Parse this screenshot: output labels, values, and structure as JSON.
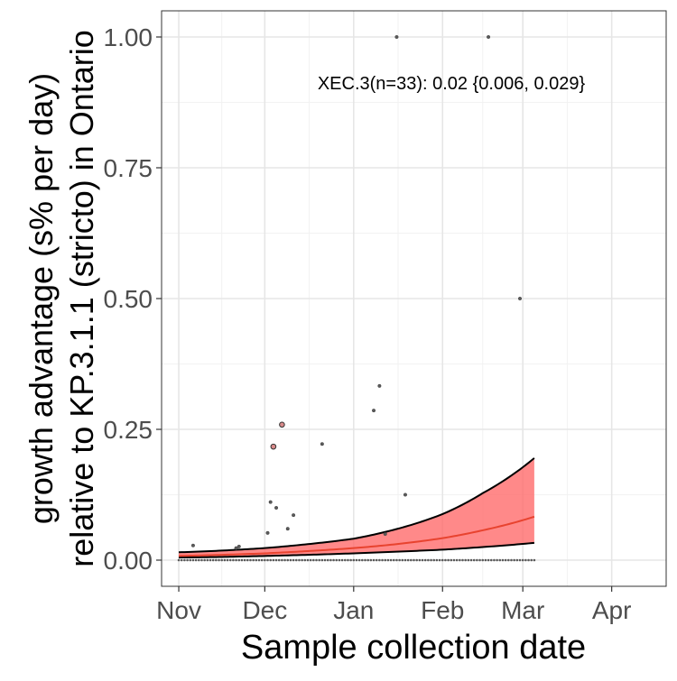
{
  "chart_data": {
    "type": "scatter",
    "title": "",
    "xlabel": "Sample collection date",
    "ylabel_line1": "growth advantage (s% per day)",
    "ylabel_line2": "relative to KP.3.1.1 (stricto) in Ontario",
    "annotation": "XEC.3(n=33): 0.02 {0.006, 0.029}",
    "xlim": [
      "2024-10-26",
      "2025-04-20"
    ],
    "ylim": [
      -0.05,
      1.05
    ],
    "x_ticks": [
      {
        "date": "2024-11-01",
        "label": "Nov"
      },
      {
        "date": "2024-12-01",
        "label": "Dec"
      },
      {
        "date": "2025-01-01",
        "label": "Jan"
      },
      {
        "date": "2025-02-01",
        "label": "Feb"
      },
      {
        "date": "2025-03-01",
        "label": "Mar"
      },
      {
        "date": "2025-04-01",
        "label": "Apr"
      }
    ],
    "y_ticks": [
      {
        "value": 0.0,
        "label": "0.00"
      },
      {
        "value": 0.25,
        "label": "0.25"
      },
      {
        "value": 0.5,
        "label": "0.50"
      },
      {
        "value": 0.75,
        "label": "0.75"
      },
      {
        "value": 1.0,
        "label": "1.00"
      }
    ],
    "grid": true,
    "colors": {
      "band": "#ff6b6b",
      "fit": "#e8432f",
      "bound": "#000000",
      "point": "#5a5a5a",
      "point_fill": "#d98a8a"
    },
    "fit_curve": {
      "x": [
        "2024-11-01",
        "2024-11-15",
        "2024-12-01",
        "2024-12-15",
        "2025-01-01",
        "2025-01-15",
        "2025-02-01",
        "2025-02-15",
        "2025-03-05"
      ],
      "y": [
        0.008,
        0.01,
        0.013,
        0.017,
        0.023,
        0.03,
        0.042,
        0.057,
        0.083
      ],
      "lower": [
        0.005,
        0.006,
        0.008,
        0.01,
        0.013,
        0.016,
        0.02,
        0.025,
        0.033
      ],
      "upper": [
        0.015,
        0.018,
        0.023,
        0.03,
        0.041,
        0.058,
        0.088,
        0.128,
        0.195
      ]
    },
    "points": [
      {
        "x": "2024-11-06",
        "y": 0.028,
        "size": 1
      },
      {
        "x": "2024-11-21",
        "y": 0.023,
        "size": 1
      },
      {
        "x": "2024-11-22",
        "y": 0.026,
        "size": 1
      },
      {
        "x": "2024-12-02",
        "y": 0.052,
        "size": 1
      },
      {
        "x": "2024-12-03",
        "y": 0.111,
        "size": 1
      },
      {
        "x": "2024-12-04",
        "y": 0.217,
        "size": 2
      },
      {
        "x": "2024-12-05",
        "y": 0.1,
        "size": 1
      },
      {
        "x": "2024-12-07",
        "y": 0.259,
        "size": 2
      },
      {
        "x": "2024-12-09",
        "y": 0.06,
        "size": 1
      },
      {
        "x": "2024-12-11",
        "y": 0.086,
        "size": 1
      },
      {
        "x": "2024-12-21",
        "y": 0.222,
        "size": 1
      },
      {
        "x": "2025-01-08",
        "y": 0.286,
        "size": 1
      },
      {
        "x": "2025-01-10",
        "y": 0.333,
        "size": 1
      },
      {
        "x": "2025-01-12",
        "y": 0.05,
        "size": 1
      },
      {
        "x": "2025-01-16",
        "y": 1.0,
        "size": 1
      },
      {
        "x": "2025-01-19",
        "y": 0.125,
        "size": 1
      },
      {
        "x": "2025-02-17",
        "y": 1.0,
        "size": 1
      },
      {
        "x": "2025-02-28",
        "y": 0.5,
        "size": 1
      }
    ],
    "zero_points": {
      "start": "2024-11-01",
      "end": "2025-03-05",
      "step_days": 1,
      "y": 0.0
    }
  }
}
